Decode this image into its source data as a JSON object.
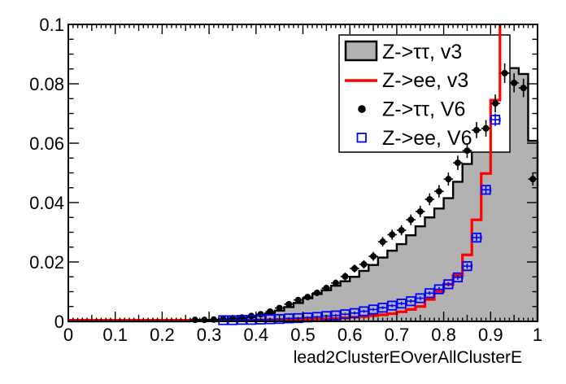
{
  "figure": {
    "background": "#ffffff",
    "frame_color": "#000000",
    "fill_gray": "#b2b2b2",
    "line_red": "#ff0000",
    "marker_black": "#000000",
    "marker_blue": "#0000ff"
  },
  "legend": {
    "entries": [
      {
        "label": "Z->ττ, v3",
        "swatch": "filled-box",
        "color": "#b2b2b2"
      },
      {
        "label": "Z->ee, v3",
        "swatch": "line",
        "color": "#ff0000"
      },
      {
        "label": "Z->ττ, V6",
        "swatch": "filled-circle",
        "color": "#000000"
      },
      {
        "label": "Z->ee, V6",
        "swatch": "open-square",
        "color": "#0000ff"
      }
    ]
  },
  "axis": {
    "x": {
      "tick_values": [
        0,
        0.1,
        0.2,
        0.3,
        0.4,
        0.5,
        0.6,
        0.7,
        0.8,
        0.9,
        1
      ],
      "tick_labels": [
        "0",
        "0.1",
        "0.2",
        "0.3",
        "0.4",
        "0.5",
        "0.6",
        "0.7",
        "0.8",
        "0.9",
        "1"
      ],
      "minor_step": 0.01,
      "medium_step": 0.05
    },
    "y": {
      "tick_values": [
        0,
        0.02,
        0.04,
        0.06,
        0.08,
        0.1
      ],
      "tick_labels": [
        "0",
        "0.02",
        "0.04",
        "0.06",
        "0.08",
        "0.1"
      ],
      "minor_step": 0.005
    }
  },
  "chart_data": {
    "type": "bar",
    "subtype": "overlaid-step-histograms-with-marker-series",
    "title": "",
    "xlabel": "lead2ClusterEOverAllClusterE",
    "ylabel": "",
    "xlim": [
      0,
      1
    ],
    "ylim": [
      0,
      0.1
    ],
    "grid": false,
    "legend_position": "top-right",
    "bin_width": 0.02,
    "series": [
      {
        "name": "Z->ττ, v3",
        "style": "filled_step_histogram",
        "fill_color": "#b2b2b2",
        "line_color": "#000000",
        "bin_start": 0,
        "values": [
          0,
          0,
          0,
          0,
          0,
          0,
          0,
          0,
          0,
          0,
          0,
          0,
          0,
          0.0002,
          0.0003,
          0.0004,
          0.0005,
          0.0007,
          0.001,
          0.0014,
          0.002,
          0.0027,
          0.0036,
          0.0048,
          0.0062,
          0.0078,
          0.0092,
          0.0105,
          0.012,
          0.0135,
          0.015,
          0.017,
          0.019,
          0.0215,
          0.0238,
          0.026,
          0.029,
          0.032,
          0.035,
          0.038,
          0.0415,
          0.047,
          0.053,
          0.06,
          0.0707,
          0.074,
          0.074,
          0.0853,
          0.0833,
          0.0608
        ]
      },
      {
        "name": "Z->ee, v3",
        "style": "step_histogram_line",
        "line_color": "#ff0000",
        "bin_start": 0,
        "values": [
          0.0004,
          0.0004,
          0.0004,
          0.0004,
          0.0004,
          0.0004,
          0.0004,
          0.0004,
          0.0004,
          0.0004,
          0.0004,
          0.0004,
          0.0004,
          0.0004,
          0.0004,
          0.0004,
          0.0004,
          0.0004,
          0.0004,
          0.0004,
          0.0005,
          0.0005,
          0.0005,
          0.0006,
          0.0006,
          0.0007,
          0.0008,
          0.0009,
          0.001,
          0.0012,
          0.0014,
          0.0016,
          0.0019,
          0.0022,
          0.0026,
          0.0032,
          0.004,
          0.005,
          0.0074,
          0.0101,
          0.0125,
          0.0155,
          0.0224,
          0.0342,
          0.0498,
          0.0745,
          null,
          null,
          null,
          null
        ],
        "note": "bins at x >= 0.92 exceed the y-axis range; the curve exits through the top of the frame at x ~ 0.92"
      },
      {
        "name": "Z->ττ, V6",
        "style": "points_with_errors",
        "marker": "filled_circle",
        "color": "#000000",
        "xerr": 0.01,
        "x": [
          0.27,
          0.29,
          0.31,
          0.33,
          0.35,
          0.37,
          0.39,
          0.41,
          0.43,
          0.45,
          0.47,
          0.49,
          0.51,
          0.53,
          0.55,
          0.57,
          0.59,
          0.61,
          0.63,
          0.65,
          0.67,
          0.69,
          0.71,
          0.73,
          0.75,
          0.77,
          0.79,
          0.81,
          0.83,
          0.85,
          0.87,
          0.89,
          0.91,
          0.93,
          0.95,
          0.97,
          0.99
        ],
        "y": [
          0.0005,
          0.0005,
          0.0006,
          0.0008,
          0.001,
          0.0013,
          0.0018,
          0.0024,
          0.0033,
          0.0045,
          0.0058,
          0.0072,
          0.0082,
          0.0096,
          0.0112,
          0.0129,
          0.0151,
          0.0178,
          0.0192,
          0.0219,
          0.0268,
          0.0292,
          0.0307,
          0.0342,
          0.037,
          0.0411,
          0.0438,
          0.0479,
          0.0534,
          0.0575,
          0.0644,
          0.065,
          0.0734,
          0.0836,
          0.0803,
          0.0786,
          0.0479
        ],
        "yerr": [
          0.0008,
          0.0008,
          0.0008,
          0.0008,
          0.0008,
          0.0008,
          0.0009,
          0.0009,
          0.0009,
          0.0009,
          0.001,
          0.001,
          0.001,
          0.0011,
          0.0011,
          0.0012,
          0.0013,
          0.0013,
          0.0014,
          0.0015,
          0.0016,
          0.0017,
          0.0017,
          0.0018,
          0.0019,
          0.002,
          0.0021,
          0.0022,
          0.0024,
          0.0025,
          0.0027,
          0.0028,
          0.003,
          0.0033,
          0.0032,
          0.0031,
          0.0022
        ]
      },
      {
        "name": "Z->ee, V6",
        "style": "points_with_errors",
        "marker": "open_square",
        "color": "#0000ff",
        "xerr": 0.01,
        "x": [
          0.33,
          0.35,
          0.37,
          0.39,
          0.41,
          0.43,
          0.45,
          0.47,
          0.49,
          0.51,
          0.53,
          0.55,
          0.57,
          0.59,
          0.61,
          0.63,
          0.65,
          0.67,
          0.69,
          0.71,
          0.73,
          0.75,
          0.77,
          0.79,
          0.81,
          0.83,
          0.85,
          0.87,
          0.89,
          0.91
        ],
        "y": [
          0.0004,
          0.0004,
          0.0005,
          0.0005,
          0.0006,
          0.0007,
          0.0008,
          0.001,
          0.0011,
          0.0013,
          0.0015,
          0.0018,
          0.002,
          0.0024,
          0.0028,
          0.0034,
          0.004,
          0.0046,
          0.0053,
          0.006,
          0.0068,
          0.0078,
          0.0095,
          0.0108,
          0.0125,
          0.0148,
          0.0186,
          0.0282,
          0.0443,
          0.0679
        ],
        "yerr": [
          0.0004,
          0.0004,
          0.0004,
          0.0004,
          0.0004,
          0.0004,
          0.0004,
          0.0004,
          0.0004,
          0.0004,
          0.0004,
          0.0004,
          0.0005,
          0.0005,
          0.0005,
          0.0005,
          0.0005,
          0.0005,
          0.0005,
          0.0006,
          0.0006,
          0.0006,
          0.0006,
          0.0007,
          0.0007,
          0.0008,
          0.0009,
          0.0011,
          0.0015,
          0.0021
        ]
      }
    ]
  }
}
